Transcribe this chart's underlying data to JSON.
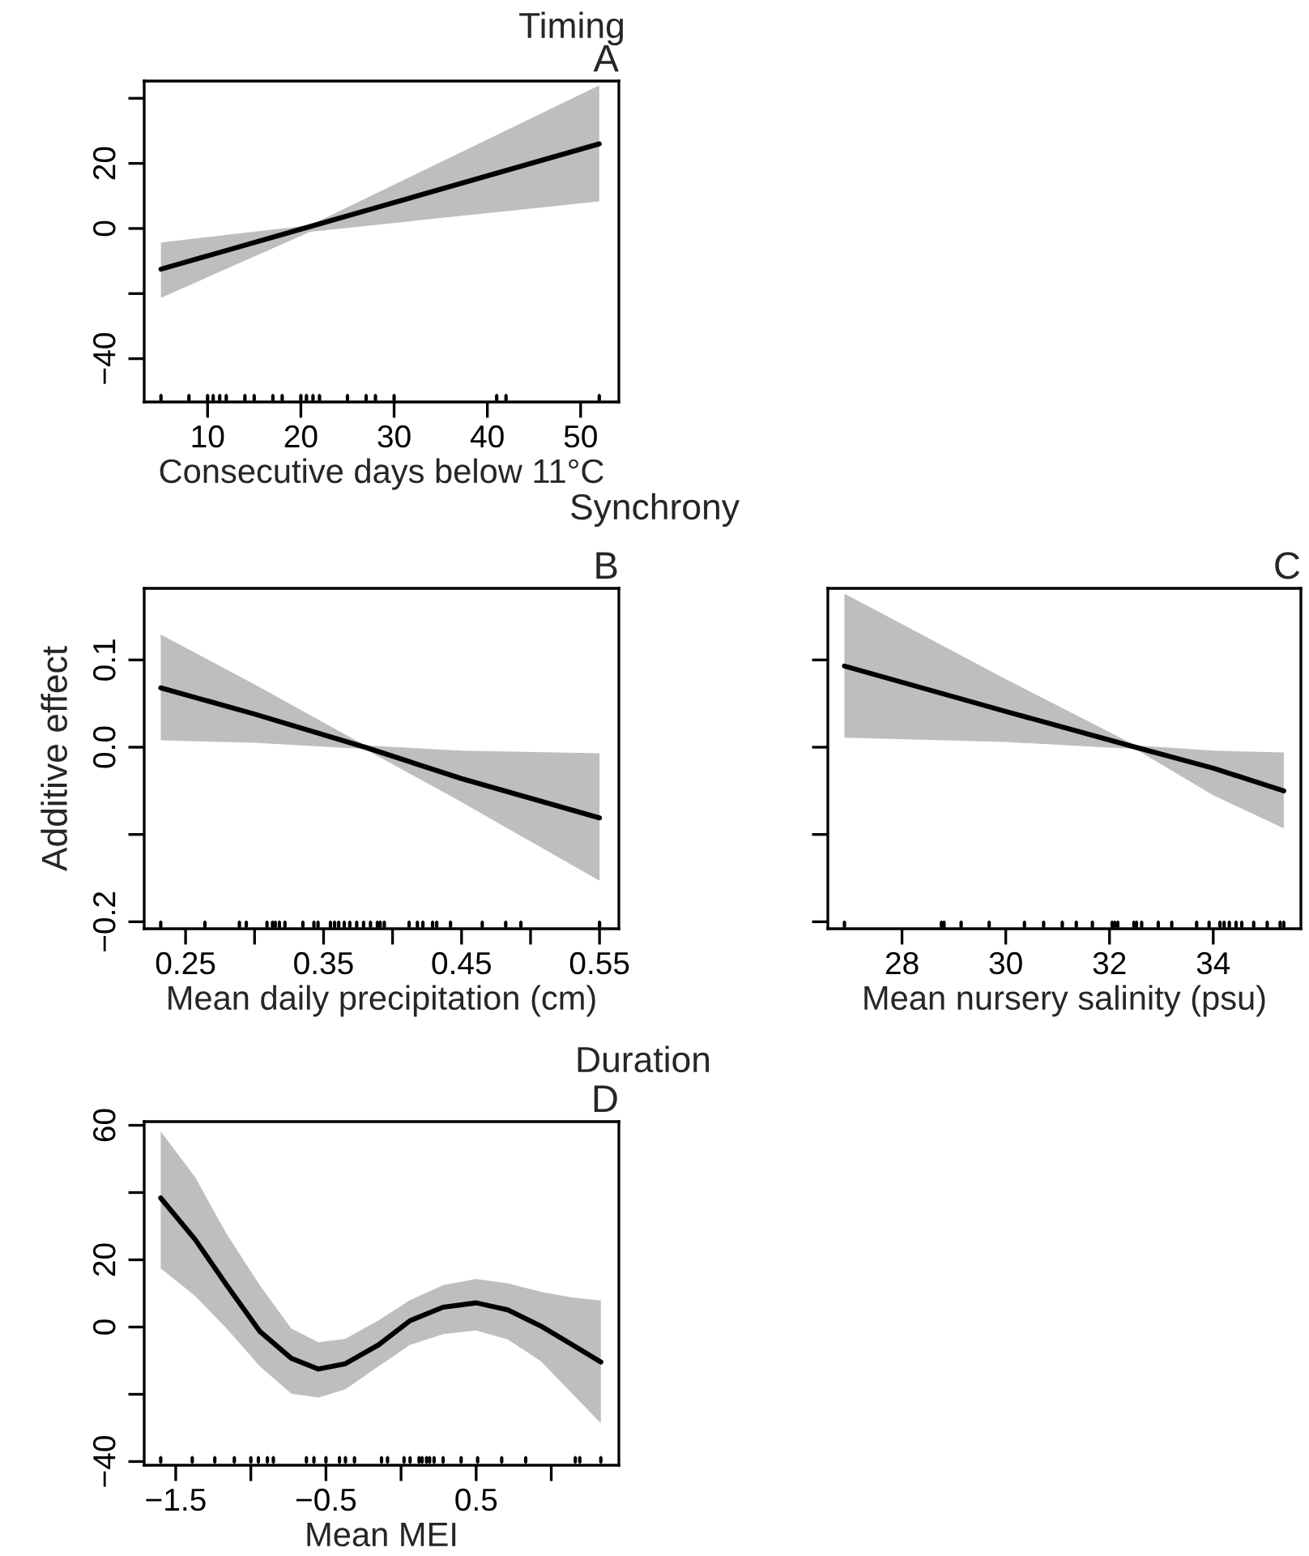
{
  "chart_data": [
    {
      "type": "line",
      "title": "Timing",
      "xlabel": "Consecutive days below 11°C",
      "annotations": [
        "A"
      ],
      "xlim": [
        3.2,
        54.1
      ],
      "ylim": [
        -53.3,
        45.3
      ],
      "xticks": [
        10,
        20,
        30,
        40,
        50
      ],
      "yticks": [
        {
          "value": -40,
          "label": "−40"
        },
        {
          "value": -20,
          "label": null
        },
        0,
        20,
        {
          "value": 40,
          "label": null
        }
      ],
      "series": [
        {
          "type": "line",
          "color": "#000000",
          "x": [
            5,
            21,
            52
          ],
          "values": [
            -12.5,
            0.6,
            26
          ],
          "lower": [
            -21.3,
            -1,
            8.3
          ],
          "upper": [
            -4.3,
            1,
            44
          ]
        },
        {
          "type": "scatter",
          "color": "#000000",
          "values": [
            -52,
            -52,
            -52,
            -52,
            -52,
            -52,
            -52,
            -52,
            -52,
            -52,
            -52,
            -52,
            -52,
            -52,
            -52,
            -52,
            -52,
            -52,
            -52,
            -52,
            -52
          ],
          "x": [
            5,
            8,
            10,
            10.6,
            11.3,
            12,
            14,
            15,
            17,
            18,
            20,
            20.6,
            21.3,
            22,
            25,
            27,
            28,
            30,
            41,
            42,
            52
          ]
        }
      ]
    },
    {
      "type": "line",
      "title": "Synchrony",
      "xlabel": "Mean daily precipitation (cm)",
      "ylabel": "Additive effect",
      "annotations": [
        "B"
      ],
      "xlim": [
        0.22,
        0.564
      ],
      "ylim": [
        -0.208,
        0.182
      ],
      "xticks": [
        0.25,
        {
          "value": 0.3,
          "label": null
        },
        0.35,
        {
          "value": 0.4,
          "label": null
        },
        0.45,
        {
          "value": 0.5,
          "label": null
        },
        0.55
      ],
      "yticks": [
        {
          "value": -0.2,
          "label": "−0.2"
        },
        {
          "value": -0.1,
          "label": null
        },
        {
          "value": 0,
          "label": "0.0"
        },
        0.1
      ],
      "series": [
        {
          "type": "line",
          "color": "#000000",
          "x": [
            0.232,
            0.3,
            0.38,
            0.45,
            0.55
          ],
          "values": [
            0.068,
            0.038,
            0,
            -0.036,
            -0.081
          ],
          "lower": [
            0.008,
            0.005,
            -0.002,
            -0.063,
            -0.153
          ],
          "upper": [
            0.129,
            0.072,
            0.002,
            -0.004,
            -0.007
          ]
        },
        {
          "type": "scatter",
          "color": "#000000",
          "values": [
            -0.203,
            -0.203,
            -0.203,
            -0.203,
            -0.203,
            -0.203,
            -0.203,
            -0.203,
            -0.203,
            -0.203,
            -0.203,
            -0.203,
            -0.203,
            -0.203,
            -0.203,
            -0.203,
            -0.203,
            -0.203,
            -0.203,
            -0.203,
            -0.203,
            -0.203,
            -0.203,
            -0.203,
            -0.203,
            -0.203,
            -0.203,
            -0.203,
            -0.203,
            -0.203,
            -0.203,
            -0.203,
            -0.203
          ],
          "x": [
            0.232,
            0.264,
            0.289,
            0.294,
            0.309,
            0.313,
            0.315,
            0.318,
            0.322,
            0.335,
            0.343,
            0.346,
            0.355,
            0.358,
            0.361,
            0.365,
            0.369,
            0.374,
            0.379,
            0.384,
            0.389,
            0.391,
            0.394,
            0.412,
            0.418,
            0.422,
            0.429,
            0.432,
            0.442,
            0.465,
            0.482,
            0.493,
            0.55
          ]
        }
      ]
    },
    {
      "type": "line",
      "xlabel": "Mean nursery salinity (psu)",
      "annotations": [
        "C"
      ],
      "tick_labels": "x",
      "xlim": [
        26.57,
        35.69
      ],
      "ylim": [
        -0.208,
        0.182
      ],
      "xticks": [
        28,
        30,
        32,
        34
      ],
      "yticks": [
        -0.2,
        -0.1,
        0,
        0.1
      ],
      "series": [
        {
          "type": "line",
          "color": "#000000",
          "x": [
            26.89,
            30,
            32.5,
            34,
            35.36
          ],
          "values": [
            0.093,
            0.041,
            0,
            -0.024,
            -0.05
          ],
          "lower": [
            0.011,
            0.006,
            -0.002,
            -0.055,
            -0.093
          ],
          "upper": [
            0.176,
            0.078,
            0.002,
            -0.004,
            -0.006
          ]
        },
        {
          "type": "scatter",
          "color": "#000000",
          "values": [
            -0.203,
            -0.203,
            -0.203,
            -0.203,
            -0.203,
            -0.203,
            -0.203,
            -0.203,
            -0.203,
            -0.203,
            -0.203,
            -0.203,
            -0.203,
            -0.203,
            -0.203,
            -0.203,
            -0.203,
            -0.203,
            -0.203,
            -0.203,
            -0.203,
            -0.203,
            -0.203,
            -0.203,
            -0.203,
            -0.203,
            -0.203,
            -0.203,
            -0.203
          ],
          "x": [
            26.89,
            28.76,
            28.81,
            29.14,
            29.68,
            30.36,
            30.73,
            31.09,
            31.36,
            31.67,
            32.05,
            32.1,
            32.16,
            32.47,
            32.52,
            32.62,
            32.94,
            33.2,
            33.68,
            33.92,
            34.13,
            34.21,
            34.31,
            34.44,
            34.55,
            34.78,
            35.04,
            35.29,
            35.36
          ]
        }
      ]
    },
    {
      "type": "line",
      "title": "Duration",
      "xlabel": "Mean MEI",
      "annotations": [
        "D"
      ],
      "xlim": [
        -1.71,
        1.45
      ],
      "ylim": [
        -41.1,
        61.1
      ],
      "xticks": [
        {
          "value": -1.5,
          "label": "−1.5"
        },
        {
          "value": -1,
          "label": null
        },
        {
          "value": -0.5,
          "label": "−0.5"
        },
        {
          "value": 0,
          "label": null
        },
        0.5,
        {
          "value": 1,
          "label": null
        }
      ],
      "yticks": [
        {
          "value": -40,
          "label": "−40"
        },
        {
          "value": -20,
          "label": null
        },
        0,
        20,
        {
          "value": 40,
          "label": null
        },
        60
      ],
      "series": [
        {
          "type": "line",
          "color": "#000000",
          "x": [
            -1.6,
            -1.37,
            -1.16,
            -0.94,
            -0.73,
            -0.55,
            -0.37,
            -0.15,
            0.06,
            0.28,
            0.5,
            0.71,
            0.93,
            1.14,
            1.33
          ],
          "values": [
            38.4,
            26,
            12.4,
            -1.3,
            -9.3,
            -12.5,
            -10.9,
            -5.3,
            1.9,
            5.9,
            7.2,
            5.1,
            0.3,
            -5.3,
            -10.4
          ],
          "lower": [
            17.5,
            9.2,
            -0.5,
            -11.7,
            -19.8,
            -21,
            -18.5,
            -11.7,
            -5.3,
            -2.1,
            -1,
            -3.7,
            -10.1,
            -19.8,
            -28.6
          ],
          "upper": [
            58.2,
            44.5,
            27.6,
            12.4,
            -0.5,
            -4.5,
            -3.5,
            2,
            8,
            12.5,
            14.3,
            13,
            10.5,
            8.8,
            7.9
          ]
        },
        {
          "type": "scatter",
          "color": "#000000",
          "values": [
            -39.5,
            -39.5,
            -39.5,
            -39.5,
            -39.5,
            -39.5,
            -39.5,
            -39.5,
            -39.5,
            -39.5,
            -39.5,
            -39.5,
            -39.5,
            -39.5,
            -39.5,
            -39.5,
            -39.5,
            -39.5,
            -39.5,
            -39.5,
            -39.5,
            -39.5,
            -39.5,
            -39.5,
            -39.5,
            -39.5,
            -39.5,
            -39.5,
            -39.5,
            -39.5,
            -39.5
          ],
          "x": [
            -1.6,
            -1.39,
            -1.24,
            -1.11,
            -1.0,
            -0.95,
            -0.89,
            -0.85,
            -0.63,
            -0.58,
            -0.5,
            -0.41,
            -0.37,
            -0.31,
            -0.13,
            -0.09,
            0.02,
            0.06,
            0.12,
            0.14,
            0.17,
            0.19,
            0.22,
            0.28,
            0.4,
            0.51,
            0.67,
            0.83,
            1.16,
            1.19,
            1.33
          ]
        }
      ]
    }
  ]
}
